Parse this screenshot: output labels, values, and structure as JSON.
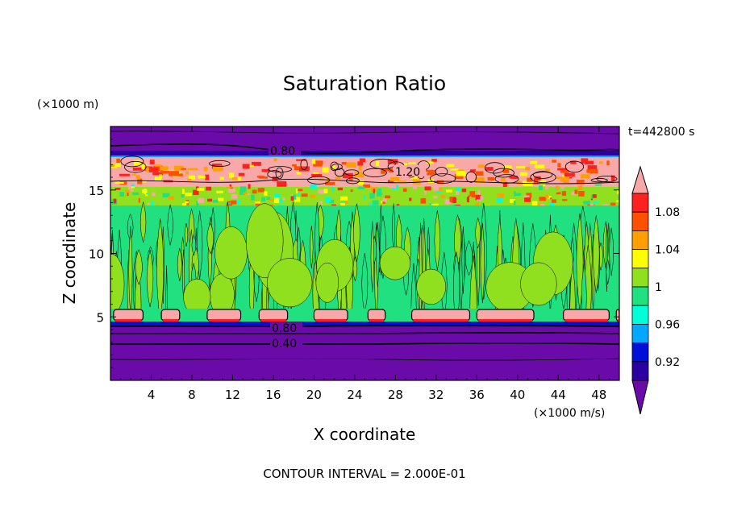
{
  "chart_data": {
    "type": "heatmap",
    "title": "Saturation Ratio",
    "xlabel": "X coordinate",
    "ylabel": "Z coordinate",
    "x_unit": "(×1000 m/s)",
    "y_unit": "(×1000 m)",
    "time_label": "t=442800 s",
    "footer": "CONTOUR INTERVAL = 2.000E-01",
    "xlim": [
      0,
      50
    ],
    "ylim": [
      0,
      20
    ],
    "x_ticks": [
      4,
      8,
      12,
      16,
      20,
      24,
      28,
      32,
      36,
      40,
      44,
      48
    ],
    "y_ticks": [
      5,
      10,
      15
    ],
    "colorbar": {
      "levels": [
        0.9,
        0.92,
        0.94,
        0.96,
        0.98,
        1.0,
        1.02,
        1.04,
        1.06,
        1.08,
        1.1
      ],
      "labels": [
        "0.92",
        "0.96",
        "1",
        "1.04",
        "1.08"
      ],
      "label_values": [
        0.92,
        0.96,
        1.0,
        1.04,
        1.08
      ],
      "colors": [
        "#6a0aa8",
        "#2a00a0",
        "#0010d8",
        "#00a8ff",
        "#00ffd8",
        "#20e080",
        "#90e020",
        "#ffff00",
        "#ffa000",
        "#ff5000",
        "#ff2020",
        "#f8a8a8"
      ],
      "extend": "both"
    },
    "bands": [
      {
        "z_range": [
          0,
          4.5
        ],
        "value": "below 0.90"
      },
      {
        "z_range": [
          4.5,
          5.6
        ],
        "value": "1.10+ patches at cloud base"
      },
      {
        "z_range": [
          5.6,
          13.5
        ],
        "value": "0.98–1.02"
      },
      {
        "z_range": [
          13.5,
          15.3
        ],
        "value": "1.02–1.10 mixed"
      },
      {
        "z_range": [
          15.3,
          17.8
        ],
        "value": "above 1.10"
      },
      {
        "z_range": [
          17.8,
          20
        ],
        "value": "below 0.90"
      }
    ],
    "contour_labels": [
      "0.80",
      "1.20",
      "0.80",
      "0.40"
    ],
    "contour_label_positions": [
      {
        "text": "0.80",
        "x": 17.5,
        "z": 18.2
      },
      {
        "text": "1.20",
        "x": 29.3,
        "z": 16.2
      },
      {
        "text": "0.80",
        "x": 17.5,
        "z": 4.1
      },
      {
        "text": "0.40",
        "x": 17.5,
        "z": 2.8
      }
    ]
  }
}
